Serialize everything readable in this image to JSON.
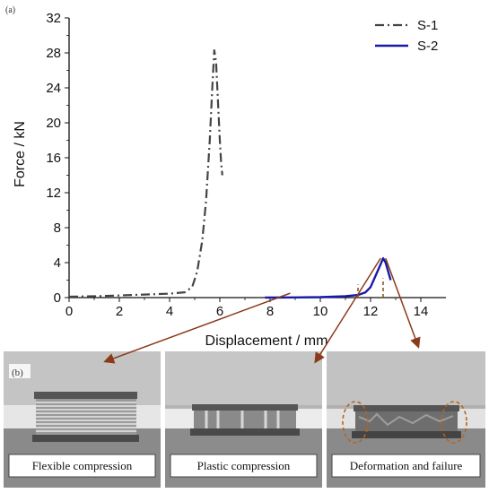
{
  "panel_labels": {
    "a": "(a)",
    "b": "(b)"
  },
  "chart_data": {
    "type": "line",
    "xlabel": "Displacement / mm",
    "ylabel": "Force / kN",
    "xlim": [
      0,
      15
    ],
    "ylim": [
      0,
      32
    ],
    "x_ticks": [
      0,
      2,
      4,
      6,
      8,
      10,
      12,
      14
    ],
    "y_ticks": [
      0,
      4,
      8,
      12,
      16,
      20,
      24,
      28,
      32
    ],
    "grid": false,
    "legend": "top-right",
    "series": [
      {
        "name": "S-1",
        "color": "#444444",
        "style": "dash-dot",
        "x": [
          0,
          1,
          2,
          3,
          4,
          4.6,
          4.9,
          5.1,
          5.3,
          5.45,
          5.6,
          5.7,
          5.78,
          5.85,
          5.9,
          5.95,
          6.0,
          6.05,
          6.1
        ],
        "y": [
          0.1,
          0.15,
          0.25,
          0.35,
          0.45,
          0.6,
          1.2,
          3.0,
          6.5,
          11.0,
          18.0,
          24.0,
          28.3,
          27.0,
          24.0,
          21.0,
          18.0,
          15.5,
          14.0
        ]
      },
      {
        "name": "S-2",
        "color": "#1a1aaa",
        "style": "solid",
        "x": [
          7.8,
          9,
          10,
          11,
          11.5,
          11.8,
          12.0,
          12.2,
          12.4,
          12.5,
          12.6,
          12.7,
          12.8
        ],
        "y": [
          0.0,
          0.02,
          0.05,
          0.15,
          0.3,
          0.6,
          1.2,
          2.5,
          3.8,
          4.5,
          4.0,
          3.0,
          2.0
        ]
      }
    ],
    "markers": [
      {
        "x": 11.5,
        "y_from": 0,
        "y_to": 1.5,
        "color": "#8b5a2b"
      },
      {
        "x": 12.5,
        "y_from": 0,
        "y_to": 2.2,
        "color": "#8b5a2b"
      }
    ]
  },
  "photos": [
    {
      "caption": "Flexible compression",
      "arrow_from_x": 8.8,
      "arrow_from_y": 0.5
    },
    {
      "caption": "Plastic compression",
      "arrow_from_x": 12.4,
      "arrow_from_y": 4.5
    },
    {
      "caption": "Deformation and failure",
      "arrow_from_x": 12.6,
      "arrow_from_y": 4.5
    }
  ]
}
